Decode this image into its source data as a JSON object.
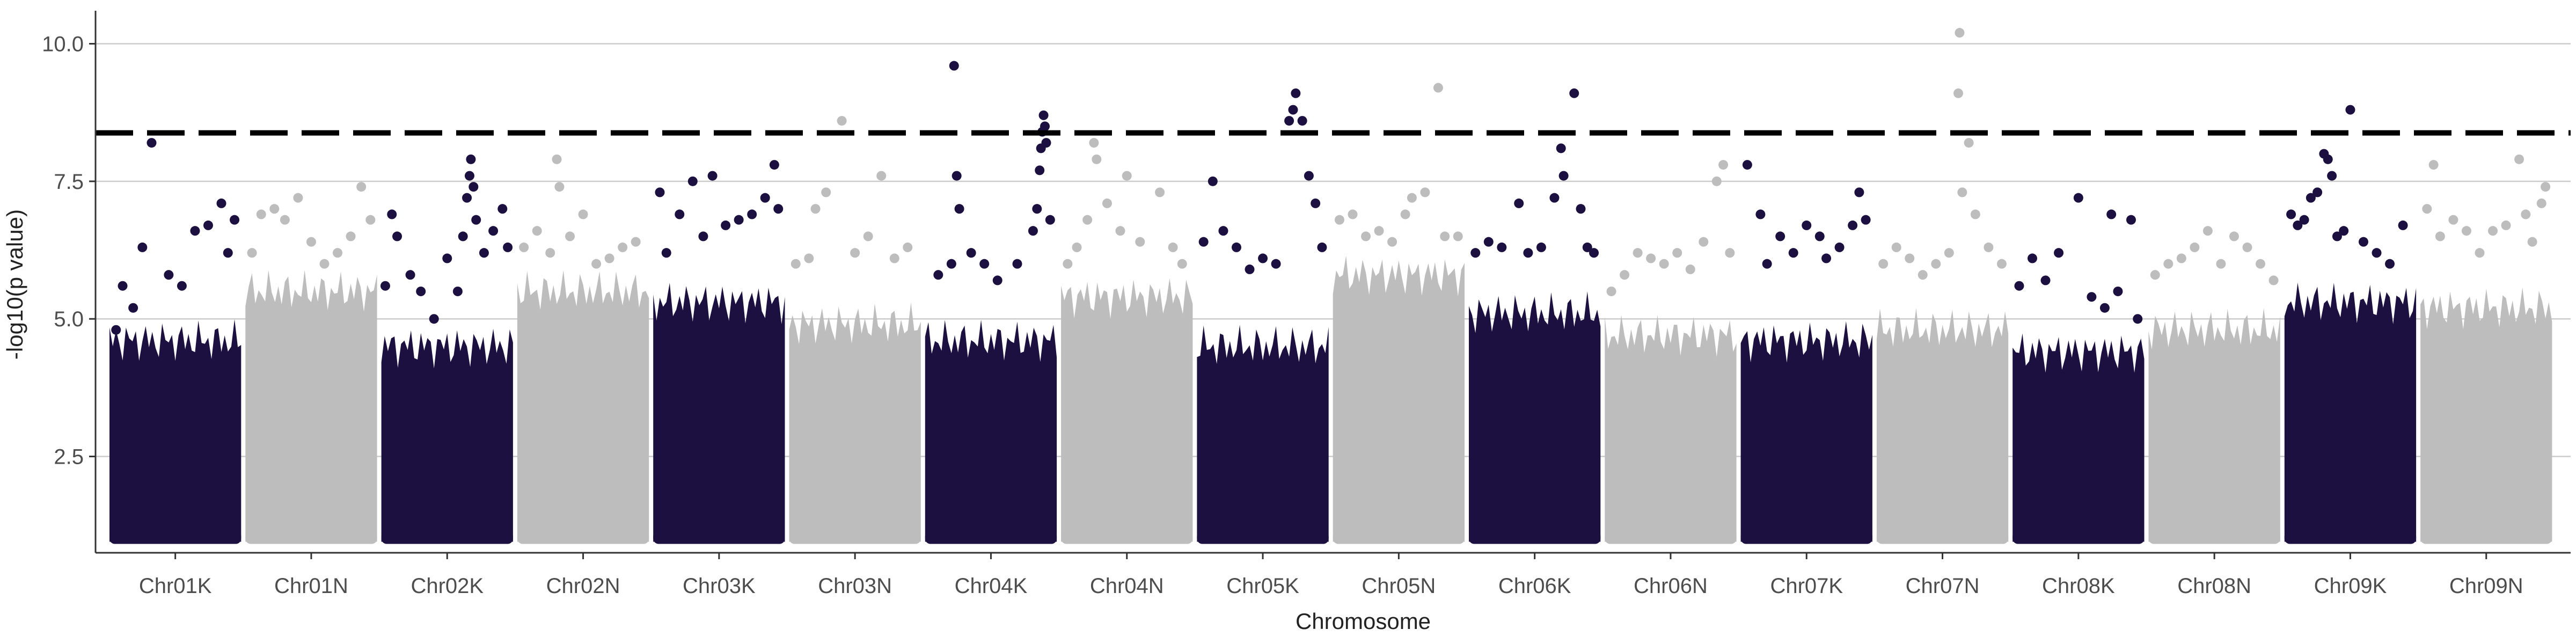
{
  "chart_data": {
    "type": "scatter",
    "title": "",
    "xlabel": "Chromosome",
    "ylabel": "-log10(p value)",
    "ylim": [
      0.75,
      10.6
    ],
    "y_ticks": [
      "2.5",
      "5.0",
      "7.5",
      "10.0"
    ],
    "y_tick_values": [
      2.5,
      5.0,
      7.5,
      10.0
    ],
    "grid": "horizontal major lines",
    "legend": "none",
    "threshold": 8.38,
    "threshold_style": "dashed",
    "colors": {
      "dark": "#1c1040",
      "light": "#bdbdbd",
      "grid": "#cccccc",
      "axis": "#333333",
      "threshold": "#000000",
      "background": "#ffffff"
    },
    "categories": [
      "Chr01K",
      "Chr01N",
      "Chr02K",
      "Chr02N",
      "Chr03K",
      "Chr03N",
      "Chr04K",
      "Chr04N",
      "Chr05K",
      "Chr05N",
      "Chr06K",
      "Chr06N",
      "Chr07K",
      "Chr07N",
      "Chr08K",
      "Chr08N",
      "Chr09K",
      "Chr09N"
    ],
    "bulk_upper": [
      4.7,
      5.6,
      4.6,
      5.6,
      5.4,
      5.0,
      4.7,
      5.5,
      4.6,
      5.9,
      5.2,
      4.8,
      4.7,
      4.9,
      4.5,
      4.9,
      5.4,
      5.3
    ],
    "series": [
      {
        "name": "Chr01K",
        "points": [
          [
            0.05,
            4.8
          ],
          [
            0.1,
            5.6
          ],
          [
            0.18,
            5.2
          ],
          [
            0.25,
            6.3
          ],
          [
            0.32,
            8.2
          ],
          [
            0.45,
            5.8
          ],
          [
            0.55,
            5.6
          ],
          [
            0.65,
            6.6
          ],
          [
            0.75,
            6.7
          ],
          [
            0.85,
            7.1
          ],
          [
            0.9,
            6.2
          ],
          [
            0.95,
            6.8
          ]
        ]
      },
      {
        "name": "Chr01N",
        "points": [
          [
            0.05,
            6.2
          ],
          [
            0.12,
            6.9
          ],
          [
            0.22,
            7.0
          ],
          [
            0.3,
            6.8
          ],
          [
            0.4,
            7.2
          ],
          [
            0.5,
            6.4
          ],
          [
            0.6,
            6.0
          ],
          [
            0.7,
            6.2
          ],
          [
            0.8,
            6.5
          ],
          [
            0.88,
            7.4
          ],
          [
            0.95,
            6.8
          ]
        ]
      },
      {
        "name": "Chr02K",
        "points": [
          [
            0.03,
            5.6
          ],
          [
            0.08,
            6.9
          ],
          [
            0.12,
            6.5
          ],
          [
            0.22,
            5.8
          ],
          [
            0.3,
            5.5
          ],
          [
            0.4,
            5.0
          ],
          [
            0.5,
            6.1
          ],
          [
            0.58,
            5.5
          ],
          [
            0.62,
            6.5
          ],
          [
            0.65,
            7.2
          ],
          [
            0.67,
            7.6
          ],
          [
            0.68,
            7.9
          ],
          [
            0.7,
            7.4
          ],
          [
            0.72,
            6.8
          ],
          [
            0.78,
            6.2
          ],
          [
            0.85,
            6.6
          ],
          [
            0.92,
            7.0
          ],
          [
            0.96,
            6.3
          ]
        ]
      },
      {
        "name": "Chr02N",
        "points": [
          [
            0.05,
            6.3
          ],
          [
            0.15,
            6.6
          ],
          [
            0.25,
            6.2
          ],
          [
            0.3,
            7.9
          ],
          [
            0.32,
            7.4
          ],
          [
            0.4,
            6.5
          ],
          [
            0.5,
            6.9
          ],
          [
            0.6,
            6.0
          ],
          [
            0.7,
            6.1
          ],
          [
            0.8,
            6.3
          ],
          [
            0.9,
            6.4
          ]
        ]
      },
      {
        "name": "Chr03K",
        "points": [
          [
            0.05,
            7.3
          ],
          [
            0.1,
            6.2
          ],
          [
            0.2,
            6.9
          ],
          [
            0.3,
            7.5
          ],
          [
            0.38,
            6.5
          ],
          [
            0.45,
            7.6
          ],
          [
            0.55,
            6.7
          ],
          [
            0.65,
            6.8
          ],
          [
            0.75,
            6.9
          ],
          [
            0.85,
            7.2
          ],
          [
            0.92,
            7.8
          ],
          [
            0.95,
            7.0
          ]
        ]
      },
      {
        "name": "Chr03N",
        "points": [
          [
            0.05,
            6.0
          ],
          [
            0.15,
            6.1
          ],
          [
            0.2,
            7.0
          ],
          [
            0.28,
            7.3
          ],
          [
            0.4,
            8.6
          ],
          [
            0.5,
            6.2
          ],
          [
            0.6,
            6.5
          ],
          [
            0.7,
            7.6
          ],
          [
            0.8,
            6.1
          ],
          [
            0.9,
            6.3
          ]
        ]
      },
      {
        "name": "Chr04K",
        "points": [
          [
            0.1,
            5.8
          ],
          [
            0.2,
            6.0
          ],
          [
            0.22,
            9.6
          ],
          [
            0.24,
            7.6
          ],
          [
            0.26,
            7.0
          ],
          [
            0.35,
            6.2
          ],
          [
            0.45,
            6.0
          ],
          [
            0.55,
            5.7
          ],
          [
            0.7,
            6.0
          ],
          [
            0.82,
            6.6
          ],
          [
            0.85,
            7.0
          ],
          [
            0.87,
            7.7
          ],
          [
            0.88,
            8.1
          ],
          [
            0.89,
            8.4
          ],
          [
            0.9,
            8.7
          ],
          [
            0.91,
            8.5
          ],
          [
            0.92,
            8.2
          ],
          [
            0.95,
            6.8
          ]
        ]
      },
      {
        "name": "Chr04N",
        "points": [
          [
            0.05,
            6.0
          ],
          [
            0.12,
            6.3
          ],
          [
            0.2,
            6.8
          ],
          [
            0.25,
            8.2
          ],
          [
            0.27,
            7.9
          ],
          [
            0.35,
            7.1
          ],
          [
            0.45,
            6.6
          ],
          [
            0.5,
            7.6
          ],
          [
            0.6,
            6.4
          ],
          [
            0.75,
            7.3
          ],
          [
            0.85,
            6.3
          ],
          [
            0.92,
            6.0
          ]
        ]
      },
      {
        "name": "Chr05K",
        "points": [
          [
            0.05,
            6.4
          ],
          [
            0.12,
            7.5
          ],
          [
            0.2,
            6.6
          ],
          [
            0.3,
            6.3
          ],
          [
            0.4,
            5.9
          ],
          [
            0.5,
            6.1
          ],
          [
            0.6,
            6.0
          ],
          [
            0.7,
            8.6
          ],
          [
            0.73,
            8.8
          ],
          [
            0.75,
            9.1
          ],
          [
            0.8,
            8.6
          ],
          [
            0.85,
            7.6
          ],
          [
            0.9,
            7.1
          ],
          [
            0.95,
            6.3
          ]
        ]
      },
      {
        "name": "Chr05N",
        "points": [
          [
            0.05,
            6.8
          ],
          [
            0.15,
            6.9
          ],
          [
            0.25,
            6.5
          ],
          [
            0.35,
            6.6
          ],
          [
            0.45,
            6.4
          ],
          [
            0.55,
            6.9
          ],
          [
            0.6,
            7.2
          ],
          [
            0.7,
            7.3
          ],
          [
            0.8,
            9.2
          ],
          [
            0.85,
            6.5
          ],
          [
            0.95,
            6.5
          ]
        ]
      },
      {
        "name": "Chr06K",
        "points": [
          [
            0.05,
            6.2
          ],
          [
            0.15,
            6.4
          ],
          [
            0.25,
            6.3
          ],
          [
            0.38,
            7.1
          ],
          [
            0.45,
            6.2
          ],
          [
            0.55,
            6.3
          ],
          [
            0.65,
            7.2
          ],
          [
            0.7,
            8.1
          ],
          [
            0.72,
            7.6
          ],
          [
            0.8,
            9.1
          ],
          [
            0.85,
            7.0
          ],
          [
            0.9,
            6.3
          ],
          [
            0.95,
            6.2
          ]
        ]
      },
      {
        "name": "Chr06N",
        "points": [
          [
            0.05,
            5.5
          ],
          [
            0.15,
            5.8
          ],
          [
            0.25,
            6.2
          ],
          [
            0.35,
            6.1
          ],
          [
            0.45,
            6.0
          ],
          [
            0.55,
            6.2
          ],
          [
            0.65,
            5.9
          ],
          [
            0.75,
            6.4
          ],
          [
            0.85,
            7.5
          ],
          [
            0.9,
            7.8
          ],
          [
            0.95,
            6.2
          ]
        ]
      },
      {
        "name": "Chr07K",
        "points": [
          [
            0.05,
            7.8
          ],
          [
            0.15,
            6.9
          ],
          [
            0.2,
            6.0
          ],
          [
            0.3,
            6.5
          ],
          [
            0.4,
            6.2
          ],
          [
            0.5,
            6.7
          ],
          [
            0.6,
            6.5
          ],
          [
            0.65,
            6.1
          ],
          [
            0.75,
            6.3
          ],
          [
            0.85,
            6.7
          ],
          [
            0.9,
            7.3
          ],
          [
            0.95,
            6.8
          ]
        ]
      },
      {
        "name": "Chr07N",
        "points": [
          [
            0.05,
            6.0
          ],
          [
            0.15,
            6.3
          ],
          [
            0.25,
            6.1
          ],
          [
            0.35,
            5.8
          ],
          [
            0.45,
            6.0
          ],
          [
            0.55,
            6.2
          ],
          [
            0.62,
            9.1
          ],
          [
            0.63,
            10.2
          ],
          [
            0.65,
            7.3
          ],
          [
            0.7,
            8.2
          ],
          [
            0.75,
            6.9
          ],
          [
            0.85,
            6.3
          ],
          [
            0.95,
            6.0
          ]
        ]
      },
      {
        "name": "Chr08K",
        "points": [
          [
            0.05,
            5.6
          ],
          [
            0.15,
            6.1
          ],
          [
            0.25,
            5.7
          ],
          [
            0.35,
            6.2
          ],
          [
            0.5,
            7.2
          ],
          [
            0.6,
            5.4
          ],
          [
            0.7,
            5.2
          ],
          [
            0.75,
            6.9
          ],
          [
            0.8,
            5.5
          ],
          [
            0.9,
            6.8
          ],
          [
            0.95,
            5.0
          ]
        ]
      },
      {
        "name": "Chr08N",
        "points": [
          [
            0.05,
            5.8
          ],
          [
            0.15,
            6.0
          ],
          [
            0.25,
            6.1
          ],
          [
            0.35,
            6.3
          ],
          [
            0.45,
            6.6
          ],
          [
            0.55,
            6.0
          ],
          [
            0.65,
            6.5
          ],
          [
            0.75,
            6.3
          ],
          [
            0.85,
            6.0
          ],
          [
            0.95,
            5.7
          ]
        ]
      },
      {
        "name": "Chr09K",
        "points": [
          [
            0.05,
            6.9
          ],
          [
            0.1,
            6.7
          ],
          [
            0.15,
            6.8
          ],
          [
            0.2,
            7.2
          ],
          [
            0.25,
            7.3
          ],
          [
            0.3,
            8.0
          ],
          [
            0.33,
            7.9
          ],
          [
            0.36,
            7.6
          ],
          [
            0.4,
            6.5
          ],
          [
            0.45,
            6.6
          ],
          [
            0.5,
            8.8
          ],
          [
            0.6,
            6.4
          ],
          [
            0.7,
            6.2
          ],
          [
            0.8,
            6.0
          ],
          [
            0.9,
            6.7
          ]
        ]
      },
      {
        "name": "Chr09N",
        "points": [
          [
            0.05,
            7.0
          ],
          [
            0.1,
            7.8
          ],
          [
            0.15,
            6.5
          ],
          [
            0.25,
            6.8
          ],
          [
            0.35,
            6.6
          ],
          [
            0.45,
            6.2
          ],
          [
            0.55,
            6.6
          ],
          [
            0.65,
            6.7
          ],
          [
            0.75,
            7.9
          ],
          [
            0.8,
            6.9
          ],
          [
            0.85,
            6.4
          ],
          [
            0.92,
            7.1
          ],
          [
            0.95,
            7.4
          ]
        ]
      }
    ]
  }
}
